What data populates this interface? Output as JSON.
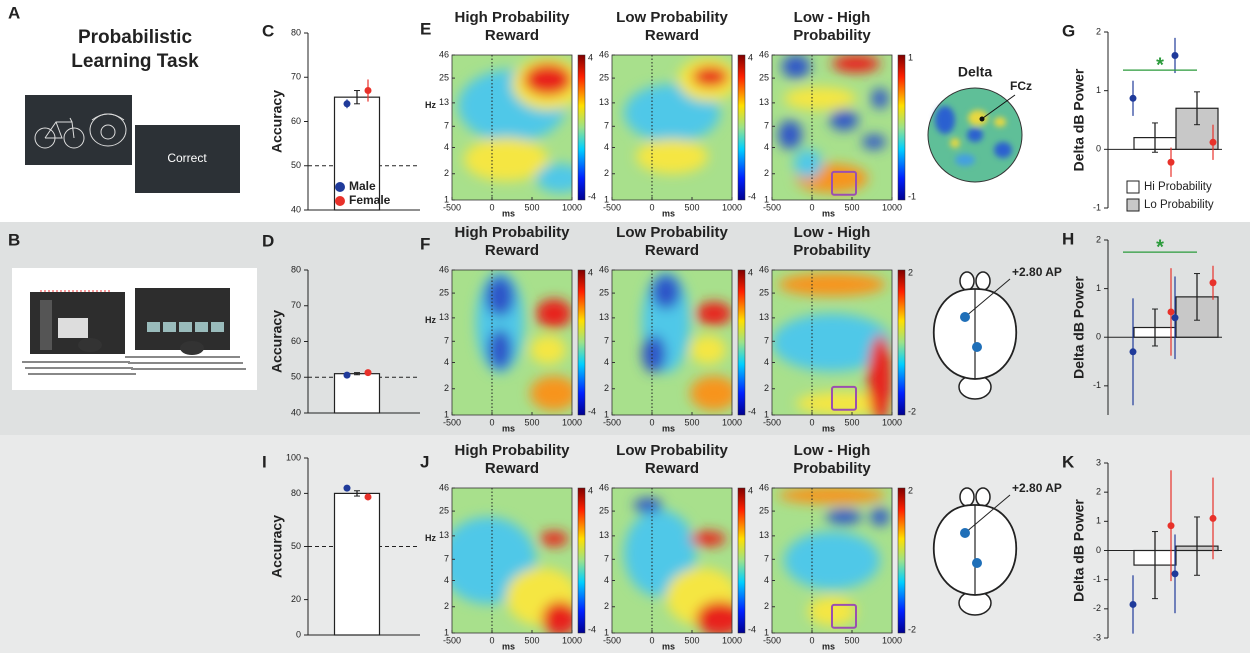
{
  "task": {
    "panel": "A",
    "title": [
      "Probabilistic",
      "Learning Task"
    ],
    "feedback": "Correct"
  },
  "apparatus": {
    "panel": "B"
  },
  "chart_data": [
    {
      "type": "bar",
      "panel": "C",
      "ylabel": "Accuracy",
      "ylim": [
        40,
        80
      ],
      "yticks": [
        40,
        50,
        60,
        70,
        80
      ],
      "values": [
        65.5
      ],
      "errors": [
        1.5
      ],
      "color": "#ffffff",
      "reference_line": 50,
      "series": [
        {
          "name": "Male",
          "color": "#1f3a9a",
          "values": [
            64
          ],
          "errors": [
            1
          ]
        },
        {
          "name": "Female",
          "color": "#e8312a",
          "values": [
            67
          ],
          "errors": [
            2.5
          ]
        }
      ]
    },
    {
      "type": "bar",
      "panel": "D",
      "ylabel": "Accuracy",
      "ylim": [
        40,
        80
      ],
      "yticks": [
        40,
        50,
        60,
        70,
        80
      ],
      "values": [
        51
      ],
      "errors": [
        0.3
      ],
      "color": "#ffffff",
      "reference_line": 50,
      "series": [
        {
          "color": "#1f3a9a",
          "values": [
            50.6
          ]
        },
        {
          "color": "#e8312a",
          "values": [
            51.3
          ]
        }
      ]
    },
    {
      "type": "bar",
      "panel": "I",
      "ylabel": "Accuracy",
      "ylim": [
        0,
        100
      ],
      "yticks": [
        0,
        20,
        50,
        80,
        100
      ],
      "values": [
        80
      ],
      "errors": [
        1.5
      ],
      "color": "#ffffff",
      "reference_line": 50,
      "series": [
        {
          "color": "#1f3a9a",
          "values": [
            83
          ]
        },
        {
          "color": "#e8312a",
          "values": [
            78
          ]
        }
      ]
    },
    {
      "type": "bar",
      "panel": "G",
      "ylabel": "Delta dB Power",
      "ylim": [
        -1,
        2
      ],
      "yticks": [
        -1,
        0,
        1,
        2
      ],
      "values": [
        0.2,
        0.7
      ],
      "errors": [
        0.25,
        0.28
      ],
      "colors": [
        "#ffffff",
        "#c8c8c8"
      ],
      "legend_labels": [
        "Hi Probability",
        "Lo Probability"
      ],
      "significance": {
        "label": "*",
        "value": 1.35
      },
      "series": [
        {
          "color": "#1f3a9a",
          "values": [
            0.87,
            1.6
          ],
          "errors": [
            0.3,
            0.3
          ]
        },
        {
          "color": "#e8312a",
          "values": [
            -0.22,
            0.12
          ],
          "errors": [
            0.25,
            0.3
          ]
        }
      ]
    },
    {
      "type": "bar",
      "panel": "H",
      "ylabel": "Delta dB Power",
      "ylim": [
        -1.6,
        2
      ],
      "yticks": [
        -1,
        0,
        1,
        2
      ],
      "values": [
        0.2,
        0.83
      ],
      "errors": [
        0.38,
        0.48
      ],
      "colors": [
        "#ffffff",
        "#c8c8c8"
      ],
      "significance": {
        "label": "*",
        "value": 1.75
      },
      "series": [
        {
          "color": "#1f3a9a",
          "values": [
            -0.3,
            0.4
          ],
          "errors": [
            1.1,
            0.85
          ]
        },
        {
          "color": "#e8312a",
          "values": [
            0.52,
            1.12
          ],
          "errors": [
            0.9,
            0.35
          ]
        }
      ]
    },
    {
      "type": "bar",
      "panel": "K",
      "ylabel": "Delta dB Power",
      "ylim": [
        -3,
        3
      ],
      "yticks": [
        -3,
        -2,
        -1,
        0,
        1,
        2,
        3
      ],
      "values": [
        -0.5,
        0.15
      ],
      "errors": [
        1.15,
        1.0
      ],
      "colors": [
        "#ffffff",
        "#c8c8c8"
      ],
      "series": [
        {
          "color": "#1f3a9a",
          "values": [
            -1.85,
            -0.8
          ],
          "errors": [
            1.0,
            1.35
          ]
        },
        {
          "color": "#e8312a",
          "values": [
            0.85,
            1.1
          ],
          "errors": [
            1.9,
            1.4
          ]
        }
      ]
    }
  ],
  "heatmap_axes": {
    "xlim": [
      -500,
      1000
    ],
    "ylim": [
      1,
      46
    ],
    "log_y": true,
    "xticks": [
      -500,
      0,
      500,
      1000
    ],
    "yticks": [
      1,
      2,
      4,
      7,
      13,
      25,
      46
    ],
    "xlabel": "ms",
    "ylabel": "Hz"
  },
  "heatmap_rows": [
    {
      "panel": "E",
      "maps": [
        {
          "title": [
            "High Probability",
            "Reward"
          ],
          "clim": [
            -4,
            4
          ]
        },
        {
          "title": [
            "Low Probability",
            "Reward"
          ],
          "clim": [
            -4,
            4
          ]
        },
        {
          "title": [
            "Low - High",
            "Probability"
          ],
          "clim": [
            -1,
            1
          ]
        }
      ]
    },
    {
      "panel": "F",
      "maps": [
        {
          "title": [
            "High Probability",
            "Reward"
          ],
          "clim": [
            -4,
            4
          ]
        },
        {
          "title": [
            "Low Probability",
            "Reward"
          ],
          "clim": [
            -4,
            4
          ]
        },
        {
          "title": [
            "Low - High",
            "Probability"
          ],
          "clim": [
            -2,
            2
          ]
        }
      ]
    },
    {
      "panel": "J",
      "maps": [
        {
          "title": [
            "High Probability",
            "Reward"
          ],
          "clim": [
            -4,
            4
          ]
        },
        {
          "title": [
            "Low Probability",
            "Reward"
          ],
          "clim": [
            -4,
            4
          ]
        },
        {
          "title": [
            "Low - High",
            "Probability"
          ],
          "clim": [
            -2,
            2
          ]
        }
      ]
    }
  ],
  "topography": {
    "title": "Delta",
    "electrode": "FCz"
  },
  "brain_sites": [
    {
      "label": "+2.80 AP"
    },
    {
      "label": "+2.80 AP"
    }
  ]
}
